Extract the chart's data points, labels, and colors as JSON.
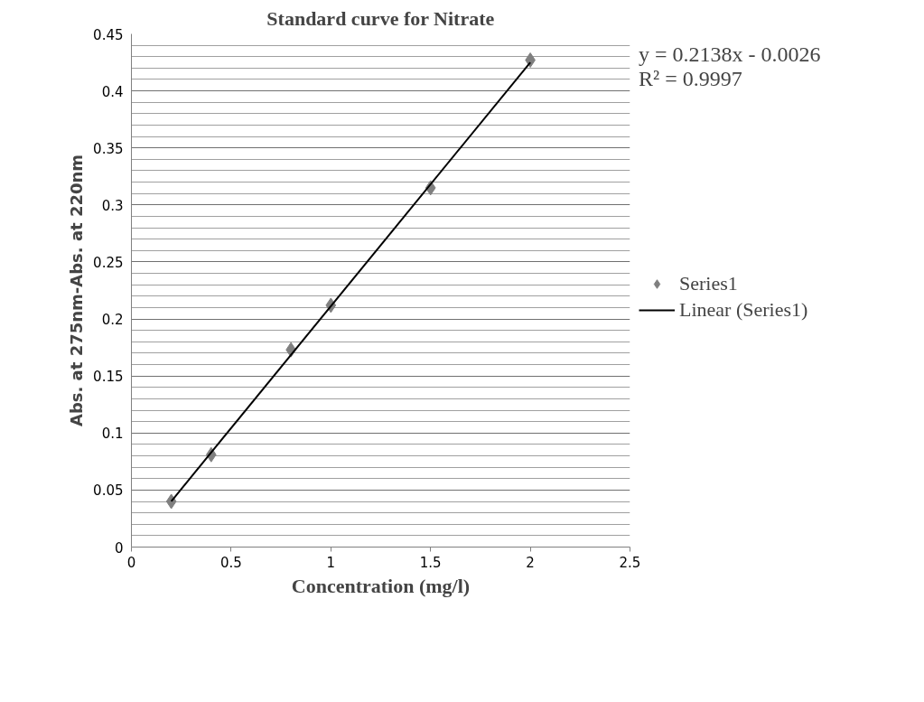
{
  "chart_data": {
    "type": "scatter",
    "title": "Standard curve for Nitrate",
    "xlabel": "Concentration (mg/l)",
    "ylabel": "Abs. at 275nm-Abs. at 220nm",
    "annotations": [
      "y = 0.2138x - 0.0026",
      "R² = 0.9997"
    ],
    "x": [
      0.2,
      0.4,
      0.8,
      1,
      1.5,
      2
    ],
    "series": [
      {
        "name": "Series1",
        "color": "#7f7f7f",
        "values": [
          0.04,
          0.081,
          0.173,
          0.212,
          0.315,
          0.427
        ],
        "marker": "diamond"
      },
      {
        "name": "Linear (Series1)",
        "type": "line",
        "color": "#000000",
        "x": [
          0.2,
          2
        ],
        "values": [
          0.0402,
          0.425
        ],
        "line_style": "solid"
      }
    ],
    "xlim": [
      0,
      2.5
    ],
    "xticks": [
      0,
      0.5,
      1,
      1.5,
      2,
      2.5
    ],
    "ylim": [
      0,
      0.45
    ],
    "yticks": [
      0,
      0.05,
      0.1,
      0.15,
      0.2,
      0.25,
      0.3,
      0.35,
      0.4,
      0.45
    ],
    "grid": "y",
    "legend": "right"
  }
}
